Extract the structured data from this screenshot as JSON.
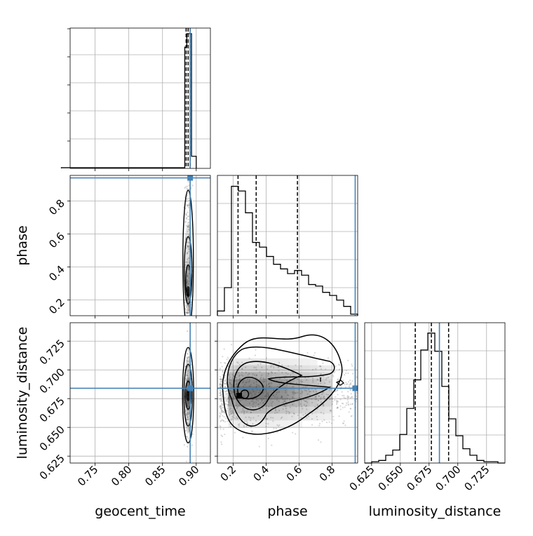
{
  "chart_data": {
    "type": "corner",
    "parameters": [
      "geocent_time",
      "phase",
      "luminosity_distance"
    ],
    "axis_labels": {
      "geocent_time": "geocent_time",
      "phase": "phase",
      "luminosity_distance": "luminosity_distance"
    },
    "truths": {
      "geocent_time": 0.891,
      "phase": 0.94,
      "luminosity_distance": 0.684
    },
    "quantiles": {
      "geocent_time": [
        0.885,
        0.888,
        0.891
      ],
      "phase": [
        0.23,
        0.34,
        0.59
      ],
      "luminosity_distance": [
        0.663,
        0.677,
        0.692
      ]
    },
    "ranges": {
      "geocent_time": [
        0.713,
        0.921
      ],
      "phase": [
        0.105,
        0.955
      ],
      "luminosity_distance": [
        0.619,
        0.741
      ]
    },
    "ticks": {
      "geocent_time": [
        "0.75",
        "0.80",
        "0.85",
        "0.90"
      ],
      "phase": [
        "0.2",
        "0.4",
        "0.6",
        "0.8"
      ],
      "luminosity_distance": [
        "0.625",
        "0.650",
        "0.675",
        "0.700",
        "0.725"
      ]
    },
    "hist_phase": {
      "edges_start": 0.105,
      "bin_width": 0.0425,
      "counts": [
        3,
        18,
        83,
        80,
        66,
        47,
        44,
        38,
        33,
        30,
        27,
        29,
        26,
        20,
        19,
        15,
        13,
        10,
        6,
        1
      ]
    },
    "hist_luminosity_distance": {
      "edges_start": 0.619,
      "bin_width": 0.0061,
      "counts": [
        0,
        1,
        2,
        6,
        10,
        22,
        42,
        64,
        87,
        100,
        86,
        59,
        34,
        21,
        11,
        6,
        2,
        1,
        1,
        0
      ]
    },
    "hist_geocent_time": {
      "bins": [
        [
          0.7,
          0.883,
          0.5
        ],
        [
          0.883,
          0.886,
          90
        ],
        [
          0.886,
          0.893,
          100
        ],
        [
          0.893,
          0.9,
          9
        ]
      ]
    },
    "grid": true
  }
}
